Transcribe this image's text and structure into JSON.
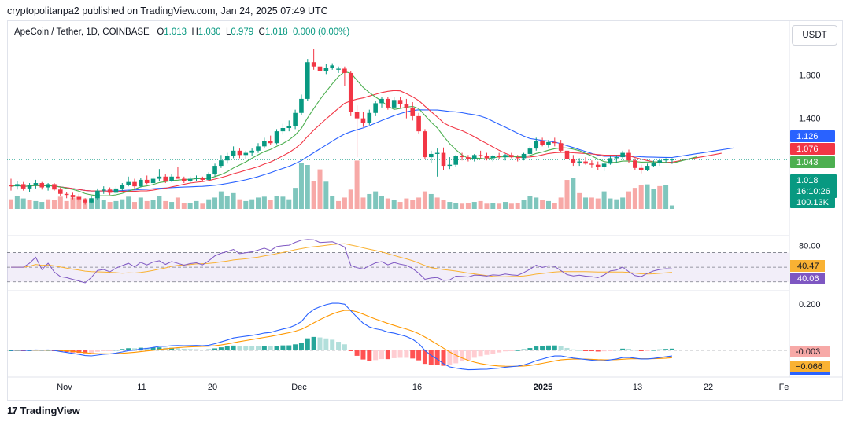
{
  "header": {
    "published": "cryptopolitanpa2 published on TradingView.com, Jan 24, 2025 07:49 UTC"
  },
  "legend": {
    "symbol": "ApeCoin / Tether, 1D, COINBASE",
    "o_label": "O",
    "o": "1.013",
    "h_label": "H",
    "h": "1.030",
    "l_label": "L",
    "l": "0.979",
    "c_label": "C",
    "c": "1.018",
    "change": "0.000 (0.00%)"
  },
  "currency_button": "USDT",
  "footer": {
    "brand": "TradingView",
    "logo": "tradingview-logo"
  },
  "colors": {
    "up": "#089981",
    "down": "#f23645",
    "upVol": "#7fc6bd",
    "downVol": "#f7a9a7",
    "ma_fast": "#4caf50",
    "ma_mid": "#f23645",
    "ma_slow": "#2962ff",
    "rsi": "#7e57c2",
    "rsi_ma": "#f9b233",
    "macd": "#2962ff",
    "signal": "#ff9800"
  },
  "chart_data": {
    "type": "candlestick",
    "x_tick_labels": [
      "Nov",
      "11",
      "20",
      "Dec",
      "16",
      "2025",
      "13",
      "22",
      "Fe"
    ],
    "price_axis": {
      "ticks": [
        "1.800"
      ],
      "partial_tick": "1.400"
    },
    "price_badges": [
      {
        "label": "1.126",
        "color": "#2962ff"
      },
      {
        "label": "1.076",
        "color": "#f23645"
      },
      {
        "label": "1.043",
        "color": "#4caf50"
      },
      {
        "label": "1.018",
        "sub": "16:10:26",
        "color": "#089981"
      },
      {
        "label": "100.13K",
        "color": "#089981"
      }
    ],
    "rsi": {
      "ticks": [
        "80.00"
      ],
      "value_badges": [
        {
          "label": "40.47",
          "color": "#f9b233"
        },
        {
          "label": "40.06",
          "color": "#7e57c2"
        }
      ],
      "levels": [
        70,
        50,
        30
      ]
    },
    "macd": {
      "ticks": [
        "0.200"
      ],
      "value_badges": [
        {
          "label": "-0.003",
          "color": "#f7a9a7"
        },
        {
          "label": "−0.066",
          "color": "#f9b233"
        }
      ]
    },
    "candles": [
      [
        0.78,
        0.84,
        0.73,
        0.77
      ],
      [
        0.77,
        0.82,
        0.74,
        0.79
      ],
      [
        0.79,
        0.81,
        0.73,
        0.75
      ],
      [
        0.75,
        0.8,
        0.72,
        0.78
      ],
      [
        0.78,
        0.83,
        0.75,
        0.8
      ],
      [
        0.8,
        0.81,
        0.74,
        0.76
      ],
      [
        0.76,
        0.8,
        0.73,
        0.79
      ],
      [
        0.79,
        0.8,
        0.73,
        0.74
      ],
      [
        0.74,
        0.76,
        0.68,
        0.7
      ],
      [
        0.7,
        0.72,
        0.66,
        0.69
      ],
      [
        0.69,
        0.71,
        0.65,
        0.67
      ],
      [
        0.67,
        0.7,
        0.63,
        0.65
      ],
      [
        0.65,
        0.66,
        0.6,
        0.62
      ],
      [
        0.62,
        0.68,
        0.61,
        0.66
      ],
      [
        0.66,
        0.75,
        0.64,
        0.73
      ],
      [
        0.73,
        0.77,
        0.7,
        0.74
      ],
      [
        0.74,
        0.76,
        0.69,
        0.71
      ],
      [
        0.71,
        0.77,
        0.7,
        0.75
      ],
      [
        0.75,
        0.8,
        0.73,
        0.78
      ],
      [
        0.78,
        0.86,
        0.77,
        0.81
      ],
      [
        0.81,
        0.84,
        0.75,
        0.77
      ],
      [
        0.77,
        0.85,
        0.76,
        0.83
      ],
      [
        0.83,
        0.87,
        0.79,
        0.8
      ],
      [
        0.8,
        0.86,
        0.78,
        0.84
      ],
      [
        0.84,
        0.93,
        0.82,
        0.86
      ],
      [
        0.86,
        0.88,
        0.8,
        0.82
      ],
      [
        0.82,
        0.88,
        0.81,
        0.86
      ],
      [
        0.86,
        0.95,
        0.85,
        0.84
      ],
      [
        0.84,
        0.86,
        0.8,
        0.82
      ],
      [
        0.82,
        0.86,
        0.8,
        0.84
      ],
      [
        0.84,
        0.87,
        0.82,
        0.85
      ],
      [
        0.85,
        0.86,
        0.82,
        0.83
      ],
      [
        0.83,
        0.9,
        0.82,
        0.88
      ],
      [
        0.88,
        0.98,
        0.86,
        0.96
      ],
      [
        0.96,
        1.06,
        0.94,
        1.01
      ],
      [
        1.01,
        1.08,
        0.98,
        1.05
      ],
      [
        1.05,
        1.14,
        1.03,
        1.1
      ],
      [
        1.1,
        1.12,
        1.03,
        1.06
      ],
      [
        1.06,
        1.1,
        1.02,
        1.08
      ],
      [
        1.08,
        1.12,
        1.05,
        1.1
      ],
      [
        1.1,
        1.17,
        1.08,
        1.14
      ],
      [
        1.14,
        1.22,
        1.12,
        1.19
      ],
      [
        1.19,
        1.24,
        1.15,
        1.17
      ],
      [
        1.17,
        1.3,
        1.16,
        1.28
      ],
      [
        1.28,
        1.35,
        1.25,
        1.31
      ],
      [
        1.31,
        1.38,
        1.28,
        1.33
      ],
      [
        1.33,
        1.48,
        1.3,
        1.45
      ],
      [
        1.45,
        1.62,
        1.43,
        1.58
      ],
      [
        1.58,
        1.95,
        1.56,
        1.92
      ],
      [
        1.92,
        2.04,
        1.85,
        1.88
      ],
      [
        1.88,
        1.92,
        1.8,
        1.84
      ],
      [
        1.84,
        1.9,
        1.81,
        1.87
      ],
      [
        1.87,
        1.91,
        1.85,
        1.89
      ],
      [
        1.85,
        1.88,
        1.82,
        1.86
      ],
      [
        1.86,
        1.88,
        1.7,
        1.82
      ],
      [
        1.82,
        1.84,
        1.42,
        1.46
      ],
      [
        1.46,
        1.52,
        1.04,
        1.4
      ],
      [
        1.4,
        1.46,
        1.32,
        1.36
      ],
      [
        1.36,
        1.48,
        1.34,
        1.45
      ],
      [
        1.45,
        1.56,
        1.42,
        1.54
      ],
      [
        1.54,
        1.6,
        1.5,
        1.58
      ],
      [
        1.58,
        1.6,
        1.48,
        1.5
      ],
      [
        1.5,
        1.6,
        1.48,
        1.57
      ],
      [
        1.57,
        1.6,
        1.5,
        1.53
      ],
      [
        1.53,
        1.58,
        1.4,
        1.5
      ],
      [
        1.5,
        1.55,
        1.38,
        1.42
      ],
      [
        1.42,
        1.45,
        1.26,
        1.28
      ],
      [
        1.28,
        1.3,
        1.02,
        1.04
      ],
      [
        1.04,
        1.1,
        0.99,
        1.07
      ],
      [
        1.07,
        1.12,
        0.86,
        1.08
      ],
      [
        1.08,
        1.13,
        0.92,
        0.96
      ],
      [
        0.96,
        1.04,
        0.93,
        0.97
      ],
      [
        0.97,
        1.06,
        0.95,
        1.05
      ],
      [
        1.05,
        1.08,
        1.01,
        1.04
      ],
      [
        1.04,
        1.06,
        1.0,
        1.02
      ],
      [
        1.02,
        1.07,
        1.0,
        1.06
      ],
      [
        1.06,
        1.1,
        1.03,
        1.05
      ],
      [
        1.05,
        1.08,
        1.01,
        1.03
      ],
      [
        1.03,
        1.06,
        1.0,
        1.05
      ],
      [
        1.05,
        1.08,
        1.02,
        1.04
      ],
      [
        1.04,
        1.07,
        1.01,
        1.06
      ],
      [
        1.06,
        1.08,
        1.03,
        1.04
      ],
      [
        1.04,
        1.06,
        1.0,
        1.03
      ],
      [
        1.03,
        1.08,
        1.01,
        1.07
      ],
      [
        1.07,
        1.14,
        1.05,
        1.12
      ],
      [
        1.12,
        1.22,
        1.1,
        1.19
      ],
      [
        1.19,
        1.22,
        1.14,
        1.15
      ],
      [
        1.15,
        1.2,
        1.13,
        1.18
      ],
      [
        1.18,
        1.22,
        1.14,
        1.17
      ],
      [
        1.17,
        1.2,
        1.08,
        1.1
      ],
      [
        1.1,
        1.12,
        0.98,
        1.02
      ],
      [
        1.02,
        1.06,
        0.96,
        0.99
      ],
      [
        0.99,
        1.03,
        0.96,
        1.0
      ],
      [
        1.0,
        1.04,
        0.97,
        0.98
      ],
      [
        0.98,
        1.01,
        0.94,
        0.97
      ],
      [
        0.97,
        1.0,
        0.92,
        0.95
      ],
      [
        0.95,
        0.99,
        0.91,
        0.98
      ],
      [
        0.98,
        1.05,
        0.97,
        1.03
      ],
      [
        1.03,
        1.06,
        0.99,
        1.04
      ],
      [
        1.04,
        1.1,
        1.02,
        1.08
      ],
      [
        1.08,
        1.11,
        0.99,
        1.01
      ],
      [
        1.01,
        1.03,
        0.92,
        0.94
      ],
      [
        0.94,
        0.97,
        0.89,
        0.92
      ],
      [
        0.92,
        0.98,
        0.91,
        0.96
      ],
      [
        0.96,
        1.01,
        0.95,
        0.99
      ],
      [
        0.99,
        1.03,
        0.96,
        1.01
      ],
      [
        1.01,
        1.03,
        0.99,
        1.02
      ],
      [
        1.013,
        1.03,
        0.979,
        1.018
      ]
    ],
    "volume": [
      [
        22,
        "d"
      ],
      [
        30,
        "u"
      ],
      [
        24,
        "u"
      ],
      [
        20,
        "d"
      ],
      [
        18,
        "u"
      ],
      [
        16,
        "u"
      ],
      [
        22,
        "d"
      ],
      [
        20,
        "d"
      ],
      [
        28,
        "d"
      ],
      [
        18,
        "d"
      ],
      [
        26,
        "d"
      ],
      [
        30,
        "d"
      ],
      [
        24,
        "d"
      ],
      [
        22,
        "u"
      ],
      [
        34,
        "u"
      ],
      [
        20,
        "u"
      ],
      [
        16,
        "d"
      ],
      [
        18,
        "u"
      ],
      [
        22,
        "u"
      ],
      [
        28,
        "u"
      ],
      [
        16,
        "d"
      ],
      [
        26,
        "u"
      ],
      [
        18,
        "d"
      ],
      [
        20,
        "u"
      ],
      [
        30,
        "u"
      ],
      [
        18,
        "d"
      ],
      [
        16,
        "u"
      ],
      [
        26,
        "d"
      ],
      [
        14,
        "d"
      ],
      [
        14,
        "u"
      ],
      [
        18,
        "u"
      ],
      [
        12,
        "d"
      ],
      [
        22,
        "u"
      ],
      [
        26,
        "u"
      ],
      [
        40,
        "u"
      ],
      [
        30,
        "u"
      ],
      [
        36,
        "u"
      ],
      [
        22,
        "d"
      ],
      [
        18,
        "u"
      ],
      [
        22,
        "u"
      ],
      [
        26,
        "u"
      ],
      [
        28,
        "u"
      ],
      [
        20,
        "d"
      ],
      [
        30,
        "u"
      ],
      [
        28,
        "u"
      ],
      [
        22,
        "u"
      ],
      [
        48,
        "u"
      ],
      [
        105,
        "u"
      ],
      [
        100,
        "u"
      ],
      [
        64,
        "d"
      ],
      [
        90,
        "d"
      ],
      [
        62,
        "u"
      ],
      [
        30,
        "u"
      ],
      [
        18,
        "d"
      ],
      [
        26,
        "d"
      ],
      [
        44,
        "d"
      ],
      [
        110,
        "d"
      ],
      [
        26,
        "d"
      ],
      [
        34,
        "u"
      ],
      [
        40,
        "u"
      ],
      [
        30,
        "u"
      ],
      [
        24,
        "d"
      ],
      [
        20,
        "u"
      ],
      [
        16,
        "d"
      ],
      [
        24,
        "d"
      ],
      [
        20,
        "d"
      ],
      [
        26,
        "d"
      ],
      [
        40,
        "d"
      ],
      [
        34,
        "u"
      ],
      [
        26,
        "d"
      ],
      [
        20,
        "d"
      ],
      [
        16,
        "u"
      ],
      [
        14,
        "u"
      ],
      [
        12,
        "d"
      ],
      [
        14,
        "d"
      ],
      [
        16,
        "u"
      ],
      [
        18,
        "d"
      ],
      [
        12,
        "d"
      ],
      [
        14,
        "u"
      ],
      [
        12,
        "d"
      ],
      [
        16,
        "u"
      ],
      [
        12,
        "d"
      ],
      [
        14,
        "d"
      ],
      [
        20,
        "u"
      ],
      [
        30,
        "u"
      ],
      [
        26,
        "u"
      ],
      [
        20,
        "d"
      ],
      [
        18,
        "u"
      ],
      [
        14,
        "d"
      ],
      [
        26,
        "d"
      ],
      [
        66,
        "d"
      ],
      [
        70,
        "u"
      ],
      [
        36,
        "d"
      ],
      [
        26,
        "u"
      ],
      [
        26,
        "d"
      ],
      [
        24,
        "d"
      ],
      [
        40,
        "u"
      ],
      [
        24,
        "u"
      ],
      [
        22,
        "u"
      ],
      [
        26,
        "u"
      ],
      [
        40,
        "d"
      ],
      [
        48,
        "d"
      ],
      [
        54,
        "d"
      ],
      [
        56,
        "u"
      ],
      [
        46,
        "u"
      ],
      [
        52,
        "d"
      ],
      [
        54,
        "u"
      ],
      [
        8,
        "u"
      ]
    ]
  }
}
